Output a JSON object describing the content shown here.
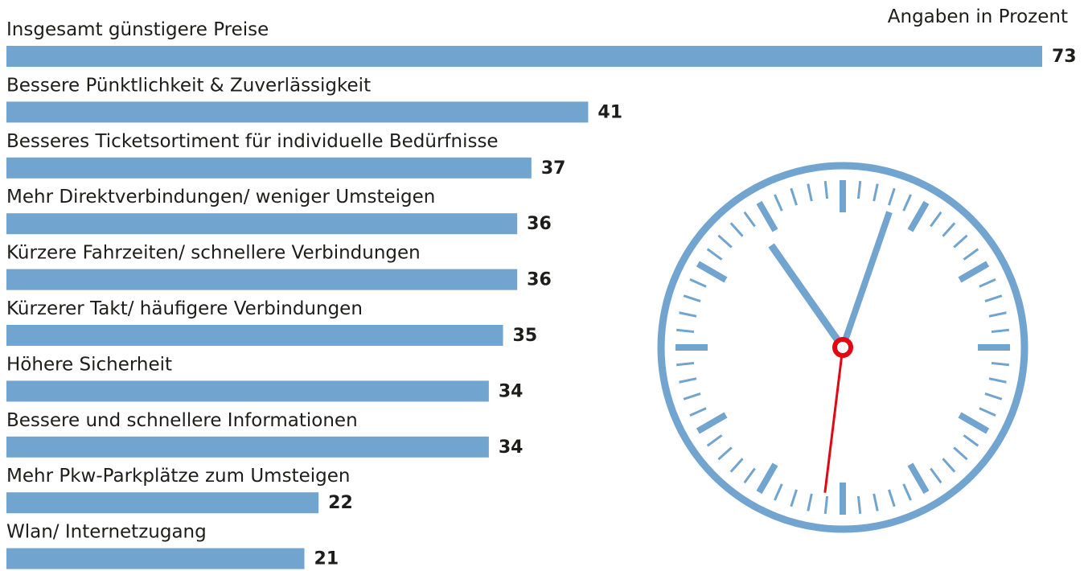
{
  "chart_data": {
    "type": "bar",
    "orientation": "horizontal",
    "subtitle": "Angaben in Prozent",
    "categories": [
      "Insgesamt günstigere Preise",
      "Bessere Pünktlichkeit & Zuverlässigkeit",
      "Besseres Ticketsortiment für individuelle Bedürfnisse",
      "Mehr Direktverbindungen/ weniger Umsteigen",
      "Kürzere Fahrzeiten/ schnellere Verbindungen",
      "Kürzerer Takt/ häufigere Verbindungen",
      "Höhere Sicherheit",
      "Bessere und schnellere Informationen",
      "Mehr Pkw-Parkplätze zum Umsteigen",
      "Wlan/ Internetzugang"
    ],
    "values": [
      73,
      41,
      37,
      36,
      36,
      35,
      34,
      34,
      22,
      21
    ],
    "color": "#72a4d0"
  }
}
